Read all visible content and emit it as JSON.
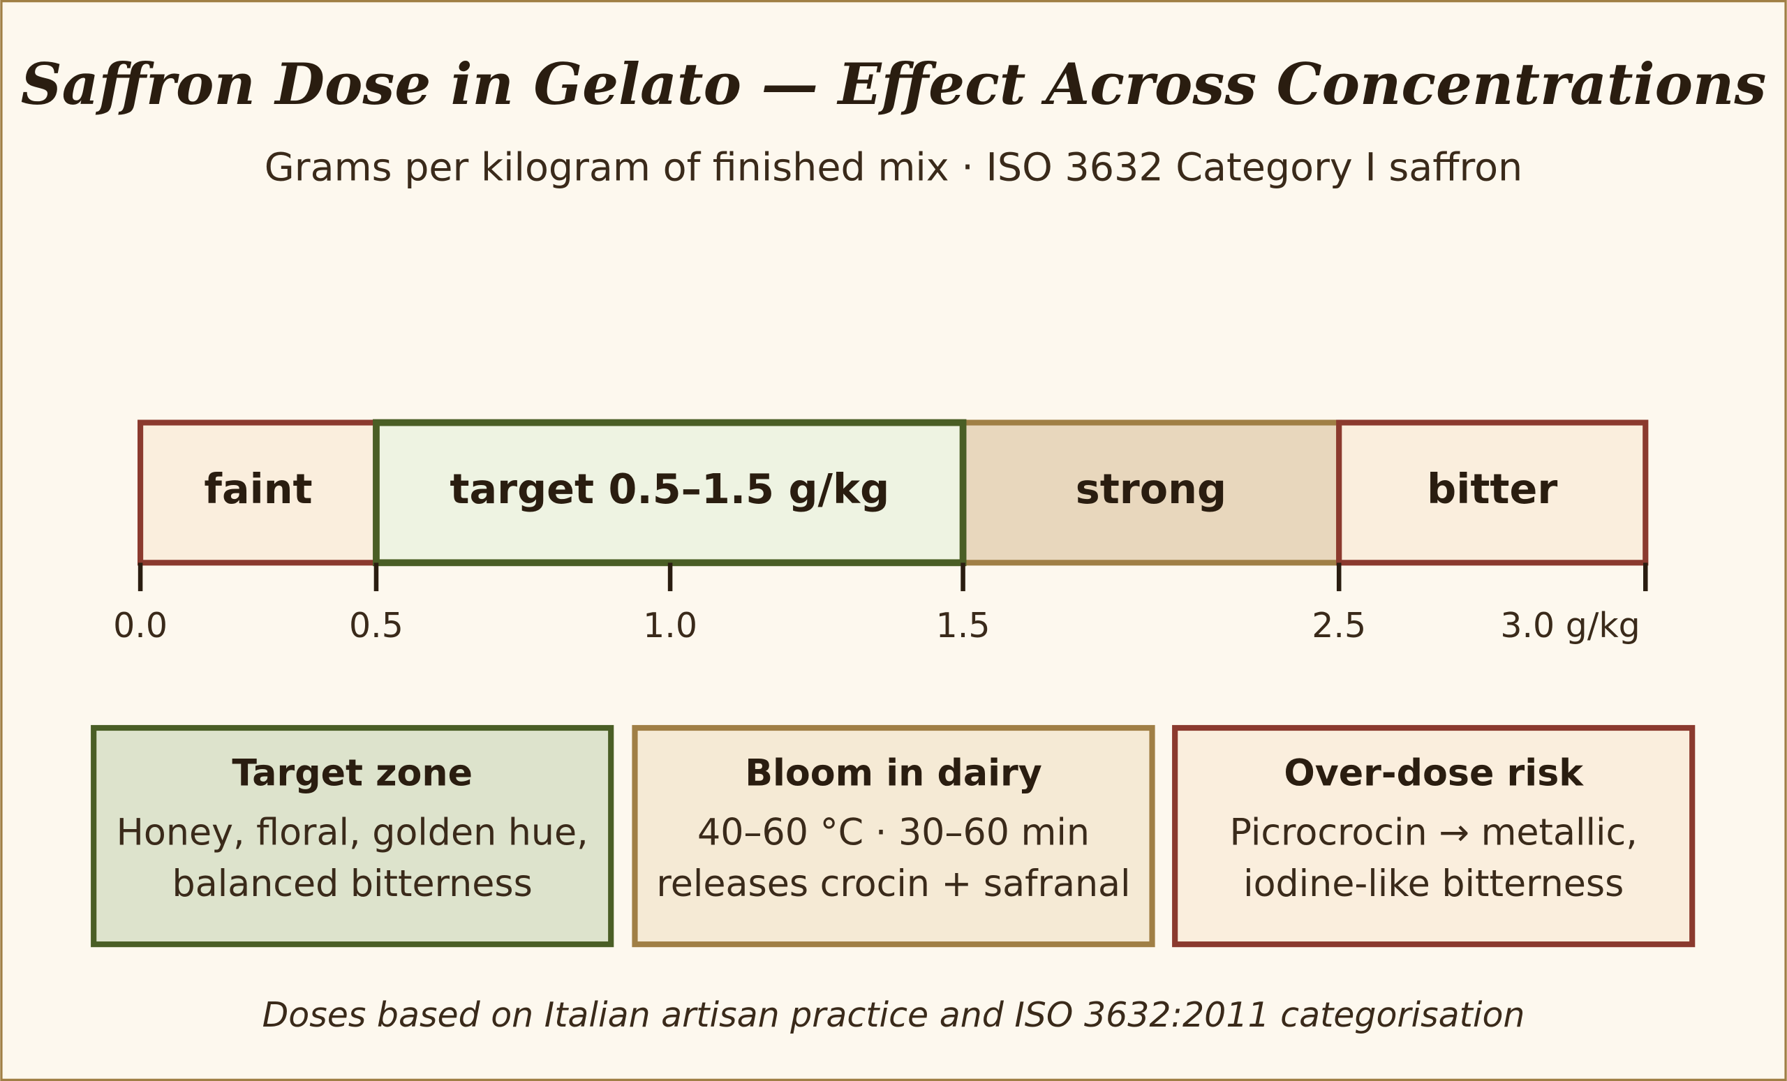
{
  "header": {
    "title": "Saffron Dose in Gelato — Effect Across Concentrations",
    "subtitle": "Grams per kilogram of finished mix · ISO 3632 Category I saffron"
  },
  "scale": {
    "zones": [
      "faint",
      "target 0.5–1.5 g/kg",
      "strong",
      "bitter"
    ],
    "ticks": [
      "0.0",
      "0.5",
      "1.0",
      "1.5",
      "2.5",
      "3.0 g/kg"
    ]
  },
  "cards": [
    {
      "title": "Target zone",
      "lines": [
        "Honey, floral, golden hue,",
        "balanced bitterness"
      ]
    },
    {
      "title": "Bloom in dairy",
      "lines": [
        "40–60 °C · 30–60 min",
        "releases crocin + safranal"
      ]
    },
    {
      "title": "Over-dose risk",
      "lines": [
        "Picrocrocin → metallic,",
        "iodine-like bitterness"
      ]
    }
  ],
  "footnote": "Doses based on Italian artisan practice and ISO 3632:2011 categorisation"
}
